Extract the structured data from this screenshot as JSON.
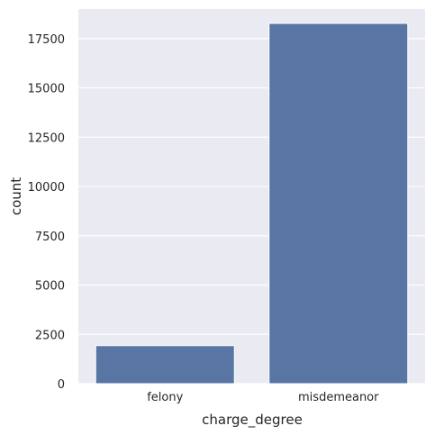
{
  "chart_data": {
    "type": "bar",
    "categories": [
      "felony",
      "misdemeanor"
    ],
    "values": [
      1930,
      18270
    ],
    "xlabel": "charge_degree",
    "ylabel": "count",
    "ylim": [
      0,
      19000
    ],
    "yticks": [
      "0",
      "2500",
      "5000",
      "7500",
      "10000",
      "12500",
      "15000",
      "17500"
    ],
    "grid": true,
    "colors": {
      "bar": "#5875a4",
      "plot_background": "#eaeaf2",
      "grid": "#ffffff",
      "text": "#262626"
    }
  }
}
